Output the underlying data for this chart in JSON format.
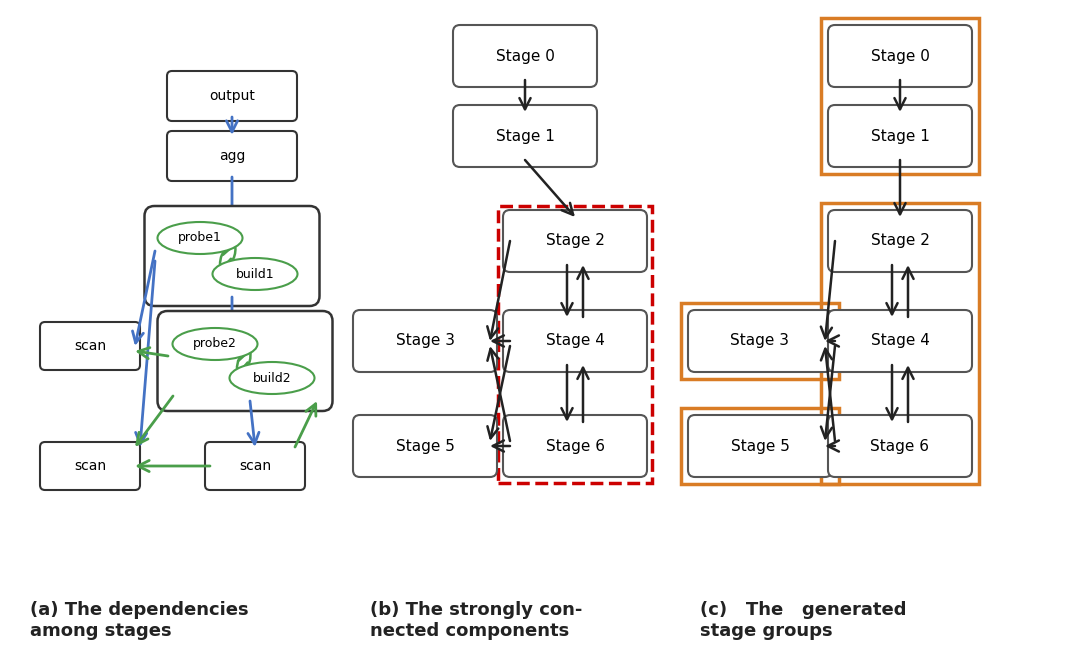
{
  "bg_color": "#ffffff",
  "blue": "#4472c4",
  "green": "#4a9e4a",
  "orange": "#d97c25",
  "red": "#cc0000",
  "black": "#222222",
  "caption_a": "(a) The dependencies\namong stages",
  "caption_b": "(b) The strongly con-\nnected components",
  "caption_c": "(c)   The   generated\nstage groups"
}
